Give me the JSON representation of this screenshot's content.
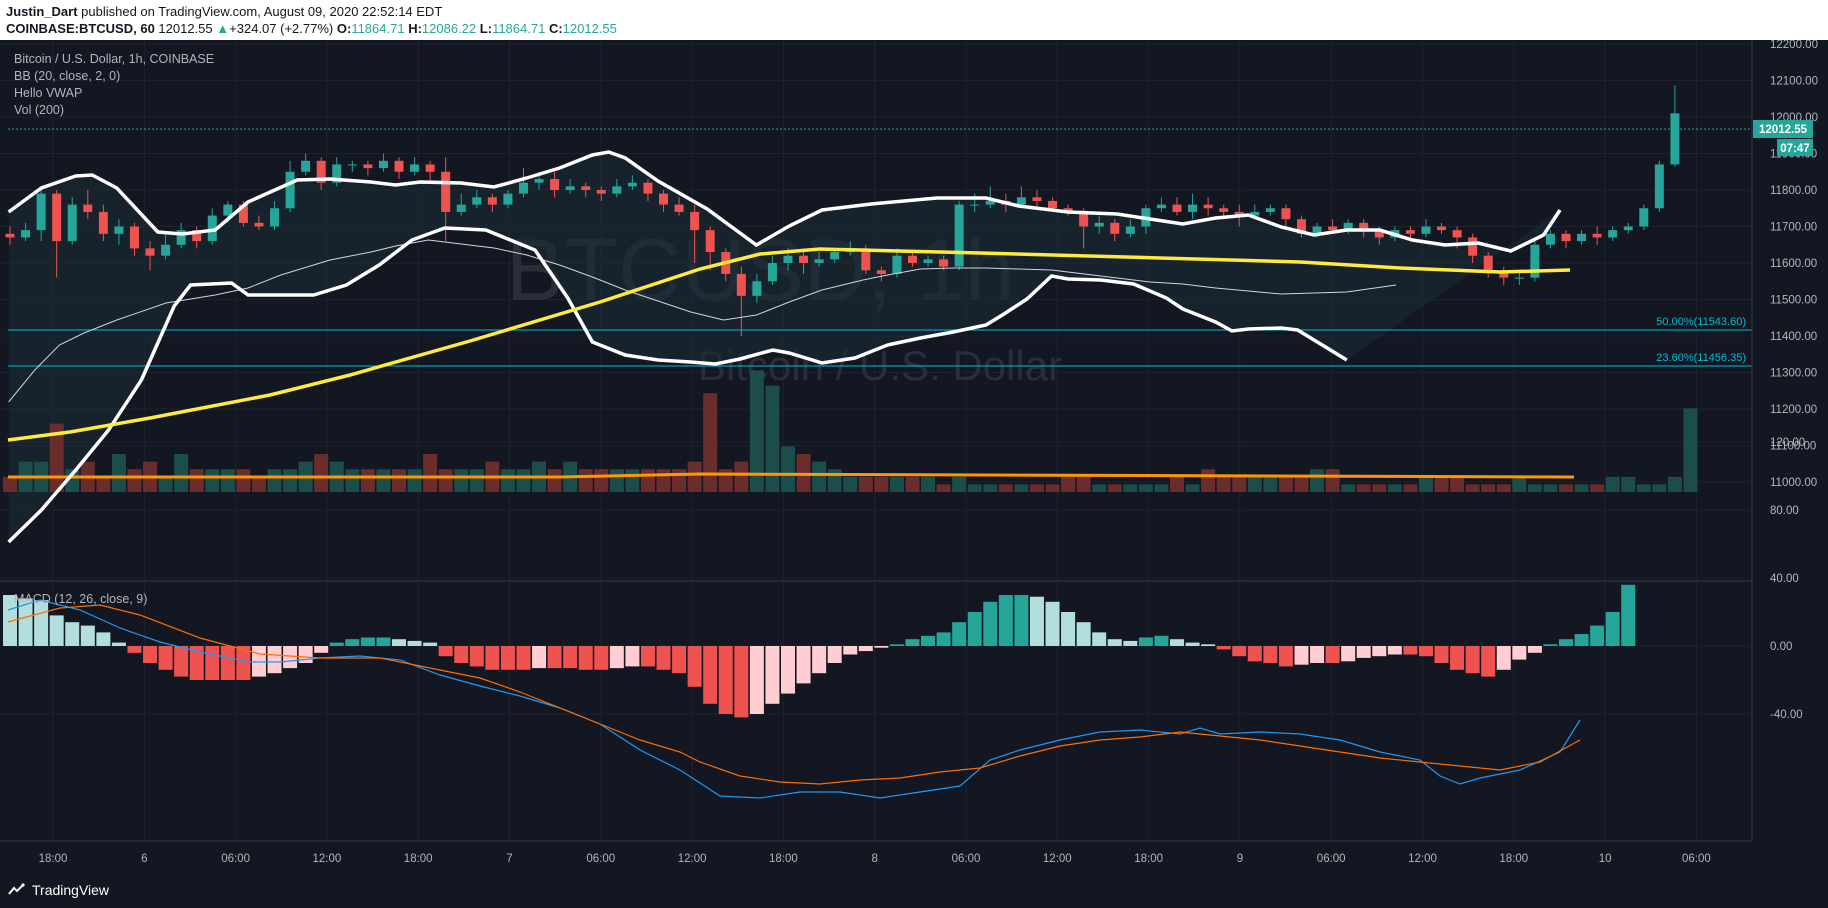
{
  "header": {
    "author": "Justin_Dart",
    "published_text": " published on TradingView.com, August 09, 2020 22:52:14 EDT",
    "symbol": "COINBASE:BTCUSD, 60",
    "last": "12012.55",
    "change_arrow": "▲",
    "change": "+324.07 (+2.77%)",
    "o_label": "O:",
    "o_val": "11864.71",
    "h_label": "H:",
    "h_val": "12086.22",
    "l_label": "L:",
    "l_val": "11864.71",
    "c_label": "C:",
    "c_val": "12012.55"
  },
  "legend": {
    "title": "Bitcoin / U.S. Dollar, 1h, COINBASE",
    "bb": "BB (20, close, 2, 0)",
    "vwap": "Hello VWAP",
    "vol": "Vol (200)",
    "macd": "MACD (12, 26, close, 9)"
  },
  "watermark": {
    "ticker": "BTCUSD, 1h",
    "name": "Bitcoin / U.S. Dollar"
  },
  "price_axis": {
    "labels": [
      "12200.00",
      "12100.00",
      "12000.00",
      "11900.00",
      "11800.00",
      "11700.00",
      "11600.00",
      "11500.00",
      "11400.00",
      "11300.00",
      "11200.00",
      "11100.00",
      "11000.00"
    ],
    "current_price": "12012.55",
    "countdown": "07:47"
  },
  "fib": {
    "level1": "50.00%(11543.60)",
    "level2": "23.60%(11456.35)"
  },
  "macd_axis": {
    "labels": [
      "120.00",
      "80.00",
      "40.00",
      "0.00",
      "-40.00"
    ]
  },
  "time_axis": {
    "labels": [
      "18:00",
      "6",
      "06:00",
      "12:00",
      "18:00",
      "7",
      "06:00",
      "12:00",
      "18:00",
      "8",
      "06:00",
      "12:00",
      "18:00",
      "9",
      "06:00",
      "12:00",
      "18:00",
      "10",
      "06:00"
    ]
  },
  "footer": {
    "brand": "TradingView"
  },
  "colors": {
    "bg": "#131722",
    "up": "#26a69a",
    "down": "#ef5350",
    "bb": "#ffffff",
    "vwap": "#ffeb3b",
    "vol_ma": "#ff9800",
    "fib": "#00bcd4",
    "macd_line": "#2196f3",
    "signal_line": "#ff6d00"
  }
}
